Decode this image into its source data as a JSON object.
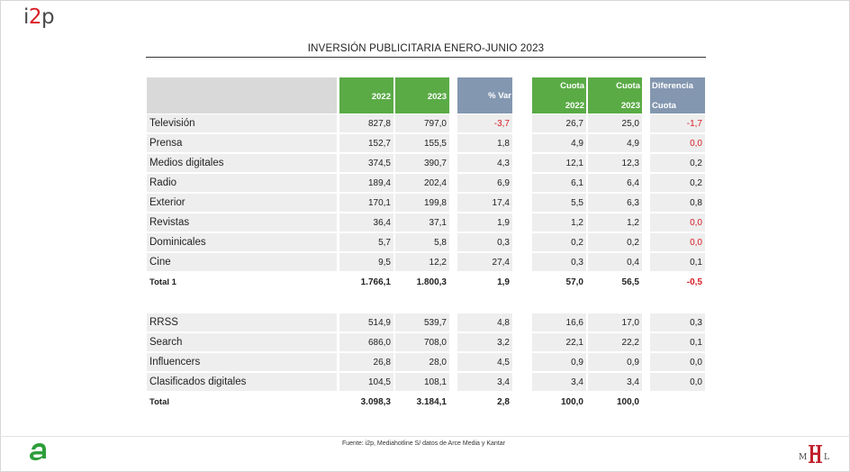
{
  "brand": {
    "logo_i": "i",
    "logo_2": "2",
    "logo_p": "p"
  },
  "title": "INVERSIÓN PUBLICITARIA ENERO-JUNIO 2023",
  "headers": {
    "y2022": "2022",
    "y2023": "2023",
    "pct_var": "% Var",
    "cuota": "Cuota",
    "cuota_2022": "2022",
    "cuota_2023": "2023",
    "diferencia": "Diferencia",
    "diferencia_cuota": "Cuota"
  },
  "rows": [
    {
      "medio": "Televisión",
      "y2022": "827,8",
      "y2023": "797,0",
      "var": "-3,7",
      "c22": "26,7",
      "c23": "25,0",
      "dif": "-1,7"
    },
    {
      "medio": "Prensa",
      "y2022": "152,7",
      "y2023": "155,5",
      "var": "1,8",
      "c22": "4,9",
      "c23": "4,9",
      "dif": "0,0"
    },
    {
      "medio": "Medios digitales",
      "y2022": "374,5",
      "y2023": "390,7",
      "var": "4,3",
      "c22": "12,1",
      "c23": "12,3",
      "dif": "0,2"
    },
    {
      "medio": "Radio",
      "y2022": "189,4",
      "y2023": "202,4",
      "var": "6,9",
      "c22": "6,1",
      "c23": "6,4",
      "dif": "0,2"
    },
    {
      "medio": "Exterior",
      "y2022": "170,1",
      "y2023": "199,8",
      "var": "17,4",
      "c22": "5,5",
      "c23": "6,3",
      "dif": "0,8"
    },
    {
      "medio": "Revistas",
      "y2022": "36,4",
      "y2023": "37,1",
      "var": "1,9",
      "c22": "1,2",
      "c23": "1,2",
      "dif": "0,0"
    },
    {
      "medio": "Dominicales",
      "y2022": "5,7",
      "y2023": "5,8",
      "var": "0,3",
      "c22": "0,2",
      "c23": "0,2",
      "dif": "0,0"
    },
    {
      "medio": "Cine",
      "y2022": "9,5",
      "y2023": "12,2",
      "var": "27,4",
      "c22": "0,3",
      "c23": "0,4",
      "dif": "0,1"
    }
  ],
  "total1": {
    "medio": "Total 1",
    "y2022": "1.766,1",
    "y2023": "1.800,3",
    "var": "1,9",
    "c22": "57,0",
    "c23": "56,5",
    "dif": "-0,5"
  },
  "rows2": [
    {
      "medio": "RRSS",
      "y2022": "514,9",
      "y2023": "539,7",
      "var": "4,8",
      "c22": "16,6",
      "c23": "17,0",
      "dif": "0,3"
    },
    {
      "medio": "Search",
      "y2022": "686,0",
      "y2023": "708,0",
      "var": "3,2",
      "c22": "22,1",
      "c23": "22,2",
      "dif": "0,1"
    },
    {
      "medio": "Influencers",
      "y2022": "26,8",
      "y2023": "28,0",
      "var": "4,5",
      "c22": "0,9",
      "c23": "0,9",
      "dif": "0,0"
    },
    {
      "medio": "Clasificados digitales",
      "y2022": "104,5",
      "y2023": "108,1",
      "var": "3,4",
      "c22": "3,4",
      "c23": "3,4",
      "dif": "0,0"
    }
  ],
  "total": {
    "medio": "Total",
    "y2022": "3.098,3",
    "y2023": "3.184,1",
    "var": "2,8",
    "c22": "100,0",
    "c23": "100,0",
    "dif": ""
  },
  "source": "Fuente: i2p, Mediahotline  S/ datos de Arce Media y Kantar",
  "colors": {
    "green_header": "#5aab46",
    "blue_header": "#8497b0",
    "negative": "#d81f26",
    "brand_green": "#2f9e3c",
    "brand_red": "#c0202b"
  }
}
